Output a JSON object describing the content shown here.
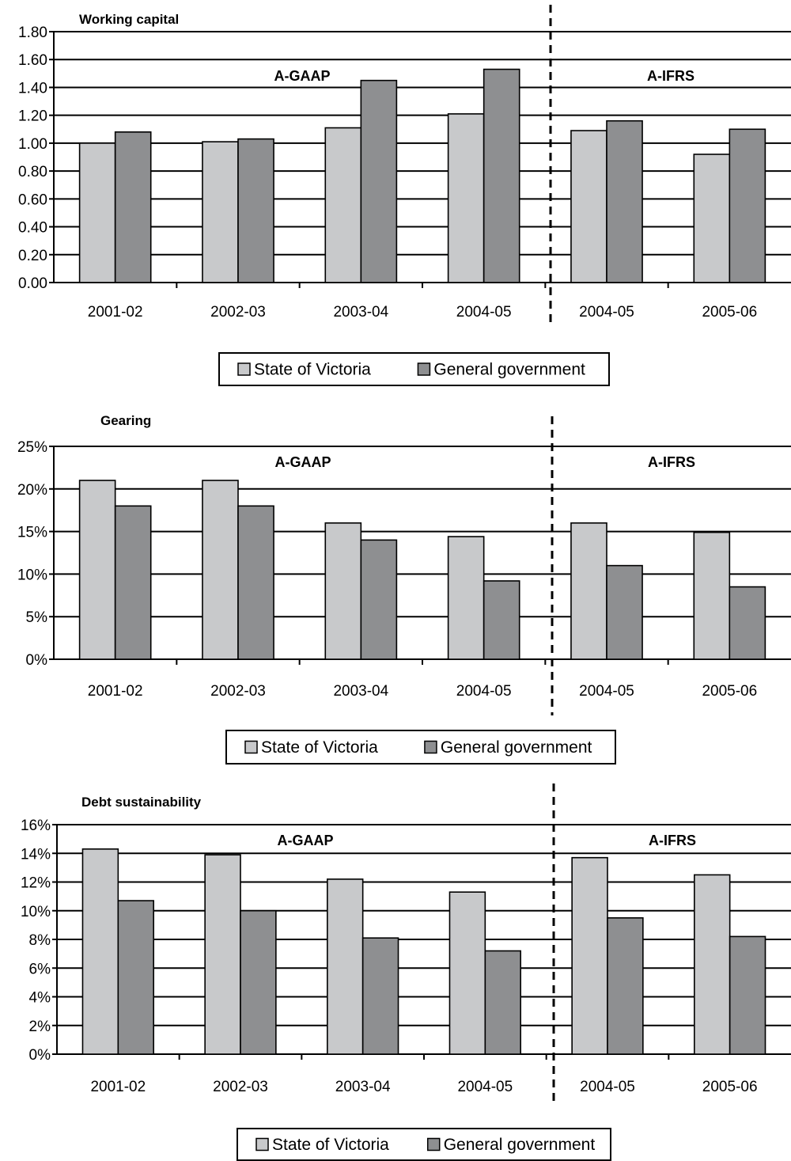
{
  "colors": {
    "state": "#c8c9cb",
    "general": "#8e8f91",
    "grid": "#000000"
  },
  "chart_data": [
    {
      "type": "bar",
      "title": "Working capital",
      "categories": [
        "2001-02",
        "2002-03",
        "2003-04",
        "2004-05",
        "2004-05",
        "2005-06"
      ],
      "series": [
        {
          "name": "State of Victoria",
          "values": [
            1.0,
            1.01,
            1.11,
            1.21,
            1.09,
            0.92
          ]
        },
        {
          "name": "General government",
          "values": [
            1.08,
            1.03,
            1.45,
            1.53,
            1.16,
            1.1
          ]
        }
      ],
      "ylim": [
        0,
        1.8
      ],
      "yticks": [
        "0.00",
        "0.20",
        "0.40",
        "0.60",
        "0.80",
        "1.00",
        "1.20",
        "1.40",
        "1.60",
        "1.80"
      ],
      "regions": [
        "A-GAAP",
        "A-IFRS"
      ],
      "legend": [
        "State of Victoria",
        "General government"
      ],
      "grid": true,
      "legend_position": "bottom-center"
    },
    {
      "type": "bar",
      "title": "Gearing",
      "categories": [
        "2001-02",
        "2002-03",
        "2003-04",
        "2004-05",
        "2004-05",
        "2005-06"
      ],
      "series": [
        {
          "name": "State of Victoria",
          "values": [
            21,
            21,
            16,
            14.4,
            16,
            14.9
          ]
        },
        {
          "name": "General government",
          "values": [
            18,
            18,
            14,
            9.2,
            11,
            8.5
          ]
        }
      ],
      "ylim": [
        0,
        25
      ],
      "yticks": [
        "0%",
        "5%",
        "10%",
        "15%",
        "20%",
        "25%"
      ],
      "regions": [
        "A-GAAP",
        "A-IFRS"
      ],
      "legend": [
        "State of Victoria",
        "General government"
      ],
      "grid": true,
      "legend_position": "bottom-center"
    },
    {
      "type": "bar",
      "title": "Debt sustainability",
      "categories": [
        "2001-02",
        "2002-03",
        "2003-04",
        "2004-05",
        "2004-05",
        "2005-06"
      ],
      "series": [
        {
          "name": "State of Victoria",
          "values": [
            14.3,
            13.9,
            12.2,
            11.3,
            13.7,
            12.5
          ]
        },
        {
          "name": "General government",
          "values": [
            10.7,
            10.0,
            8.1,
            7.2,
            9.5,
            8.2
          ]
        }
      ],
      "ylim": [
        0,
        16
      ],
      "yticks": [
        "0%",
        "2%",
        "4%",
        "6%",
        "8%",
        "10%",
        "12%",
        "14%",
        "16%"
      ],
      "regions": [
        "A-GAAP",
        "A-IFRS"
      ],
      "legend": [
        "State of Victoria",
        "General government"
      ],
      "grid": true,
      "legend_position": "bottom-center"
    }
  ]
}
